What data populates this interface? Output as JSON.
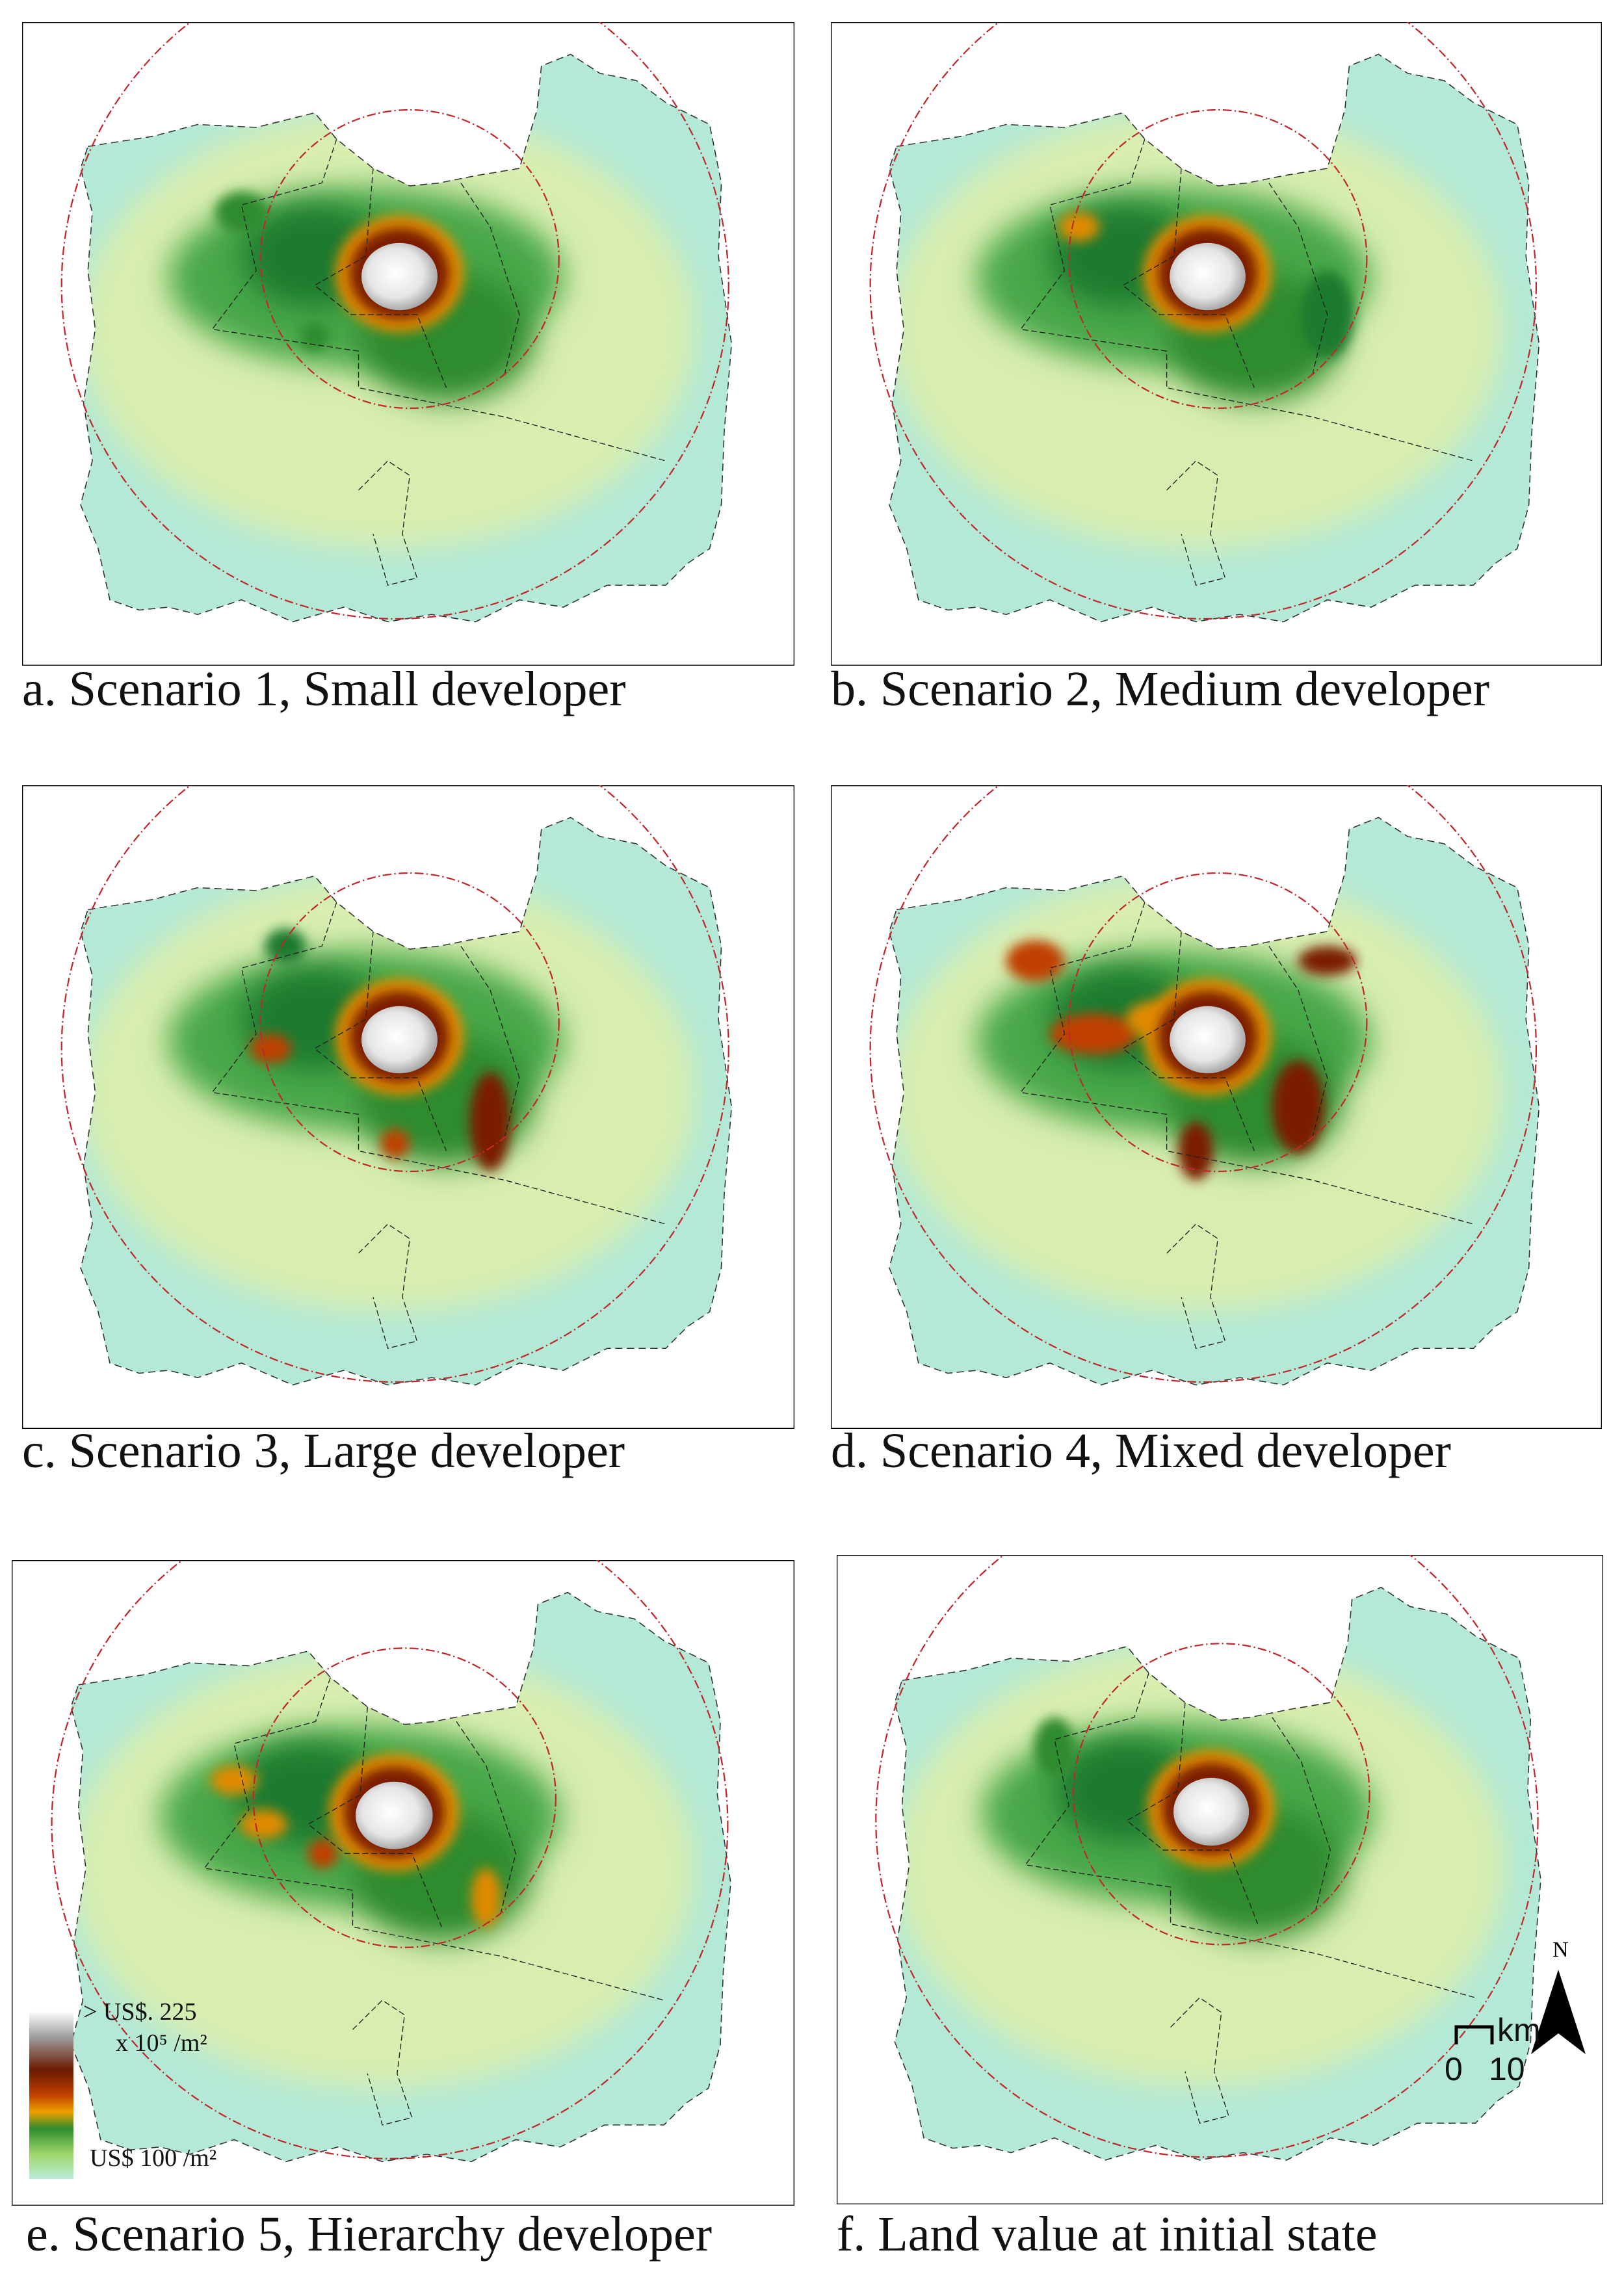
{
  "panels": [
    {
      "caption": "a. Scenario 1, Small developer"
    },
    {
      "caption": "b. Scenario 2, Medium developer"
    },
    {
      "caption": "c. Scenario 3, Large developer"
    },
    {
      "caption": "d. Scenario 4, Mixed developer"
    },
    {
      "caption": "e. Scenario 5, Hierarchy developer"
    },
    {
      "caption": "f. Land value at initial state"
    }
  ],
  "legend": {
    "high": "> US$. 225",
    "high_unit": "x 10⁵ /m²",
    "low": "US$ 100 /m²"
  },
  "north_arrow": {
    "label": "N"
  },
  "scale_bar": {
    "unit": "km",
    "ticks": [
      0,
      10
    ]
  }
}
